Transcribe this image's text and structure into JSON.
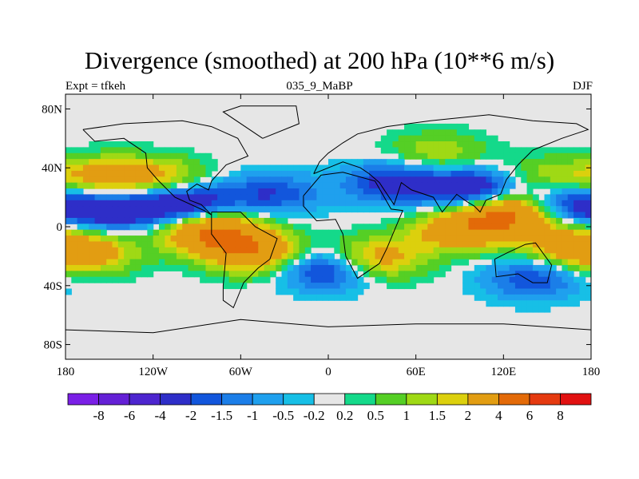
{
  "title": "Divergence (smoothed) at 200 hPa (10**6 m/s)",
  "subtitle_left": "Expt = tfkeh",
  "subtitle_center": "035_9_MaBP",
  "subtitle_right": "DJF",
  "lat_ticks": [
    "80N",
    "40N",
    "0",
    "40S",
    "80S"
  ],
  "lon_ticks": [
    "180",
    "120W",
    "60W",
    "0",
    "60E",
    "120E",
    "180"
  ],
  "colorbar": {
    "labels": [
      "-8",
      "-6",
      "-4",
      "-2",
      "-1.5",
      "-1",
      "-0.5",
      "-0.2",
      "0.2",
      "0.5",
      "1",
      "1.5",
      "2",
      "4",
      "6",
      "8"
    ],
    "colors": [
      "#7a1fe6",
      "#6420d6",
      "#4d25cf",
      "#2e2ec8",
      "#1256dc",
      "#1b7ee8",
      "#1fa0ee",
      "#17bfe6",
      "#e6e6e6",
      "#14d98a",
      "#55cf25",
      "#9fd915",
      "#dcd00d",
      "#e29d12",
      "#e36a08",
      "#e53a10",
      "#e11111"
    ]
  },
  "chart_data": {
    "type": "heatmap",
    "title": "Divergence (smoothed) at 200 hPa (10**6 m/s)",
    "subtitle_left": "Expt = tfkeh",
    "subtitle_center": "035_9_MaBP",
    "subtitle_right": "DJF",
    "xlim": [
      -180,
      180
    ],
    "ylim": [
      -90,
      90
    ],
    "x_ticks": [
      -180,
      -120,
      -60,
      0,
      60,
      120,
      180
    ],
    "y_ticks": [
      80,
      40,
      0,
      -40,
      -80
    ],
    "levels": [
      -8,
      -6,
      -4,
      -2,
      -1.5,
      -1,
      -0.5,
      -0.2,
      0.2,
      0.5,
      1,
      1.5,
      2,
      4,
      6,
      8
    ],
    "features": [
      {
        "lon": -155,
        "lat": 33,
        "value": 2.5
      },
      {
        "lon": -115,
        "lat": 33,
        "value": 2.0
      },
      {
        "lon": 150,
        "lat": 33,
        "value": 1.5
      },
      {
        "lon": 75,
        "lat": 50,
        "value": 1.5
      },
      {
        "lon": -150,
        "lat": 12,
        "value": -3.0
      },
      {
        "lon": -100,
        "lat": 15,
        "value": -3.5
      },
      {
        "lon": -40,
        "lat": 22,
        "value": -2.0
      },
      {
        "lon": 45,
        "lat": 30,
        "value": -2.5
      },
      {
        "lon": 100,
        "lat": 25,
        "value": -3.5
      },
      {
        "lon": 160,
        "lat": 15,
        "value": -3.0
      },
      {
        "lon": 0,
        "lat": -28,
        "value": -3.0
      },
      {
        "lon": 140,
        "lat": -35,
        "value": -2.0
      },
      {
        "lon": -165,
        "lat": -18,
        "value": 2.5
      },
      {
        "lon": -80,
        "lat": -3,
        "value": 4.5
      },
      {
        "lon": -50,
        "lat": -18,
        "value": 3.5
      },
      {
        "lon": 30,
        "lat": -22,
        "value": 3.0
      },
      {
        "lon": 90,
        "lat": -3,
        "value": 3.0
      },
      {
        "lon": 125,
        "lat": 10,
        "value": 5.0
      },
      {
        "lon": 165,
        "lat": -12,
        "value": 2.5
      }
    ]
  }
}
